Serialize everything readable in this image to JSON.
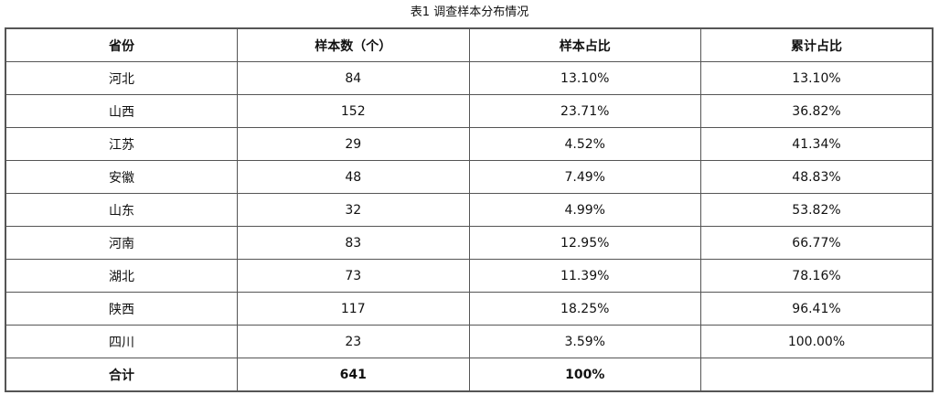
{
  "title": "表1 调查样本分布情况",
  "headers": [
    "省份",
    "样本数（个）",
    "样本占比",
    "累计占比"
  ],
  "rows": [
    [
      "河北",
      "84",
      "13.10%",
      "13.10%"
    ],
    [
      "山西",
      "152",
      "23.71%",
      "36.82%"
    ],
    [
      "江苏",
      "29",
      "4.52%",
      "41.34%"
    ],
    [
      "安徽",
      "48",
      "7.49%",
      "48.83%"
    ],
    [
      "山东",
      "32",
      "4.99%",
      "53.82%"
    ],
    [
      "河南",
      "83",
      "12.95%",
      "66.77%"
    ],
    [
      "湖北",
      "73",
      "11.39%",
      "78.16%"
    ],
    [
      "陕西",
      "117",
      "18.25%",
      "96.41%"
    ],
    [
      "四川",
      "23",
      "3.59%",
      "100.00%"
    ]
  ],
  "total": [
    "合计",
    "641",
    "100%",
    ""
  ]
}
